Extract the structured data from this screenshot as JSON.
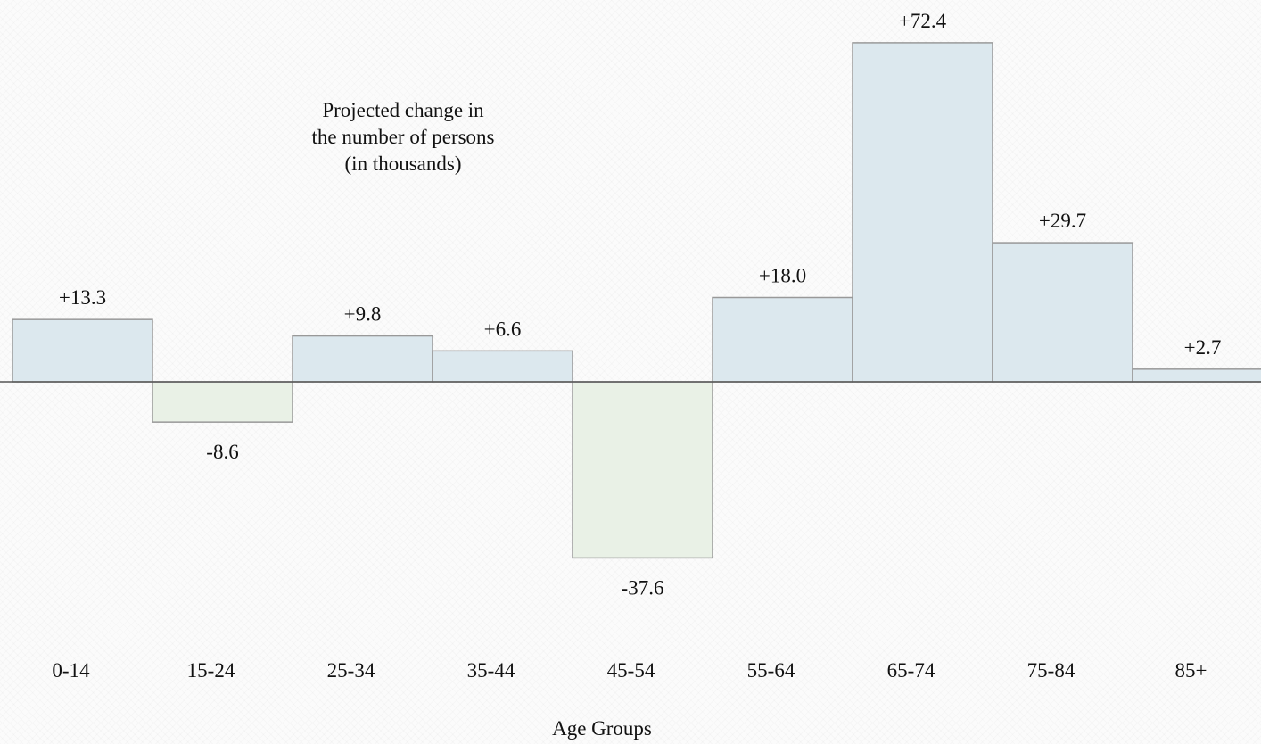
{
  "chart_data": {
    "type": "bar",
    "title": "Projected change in\nthe number of persons\n(in thousands)",
    "xlabel": "Age Groups",
    "ylabel": "",
    "categories": [
      "0-14",
      "15-24",
      "25-34",
      "35-44",
      "45-54",
      "55-64",
      "65-74",
      "75-84",
      "85+"
    ],
    "values": [
      13.3,
      -8.6,
      9.8,
      6.6,
      -37.6,
      18.0,
      72.4,
      29.7,
      2.7
    ],
    "data_labels": [
      "+13.3",
      "-8.6",
      "+9.8",
      "+6.6",
      "-37.6",
      "+18.0",
      "+72.4",
      "+29.7",
      "+2.7"
    ],
    "ylim": [
      -45,
      80
    ],
    "grid": false,
    "legend": "none",
    "colors": {
      "positive_fill": "#dce8ee",
      "negative_fill": "#e9f1e6",
      "bar_stroke": "#999999",
      "axis": "#555555"
    }
  }
}
